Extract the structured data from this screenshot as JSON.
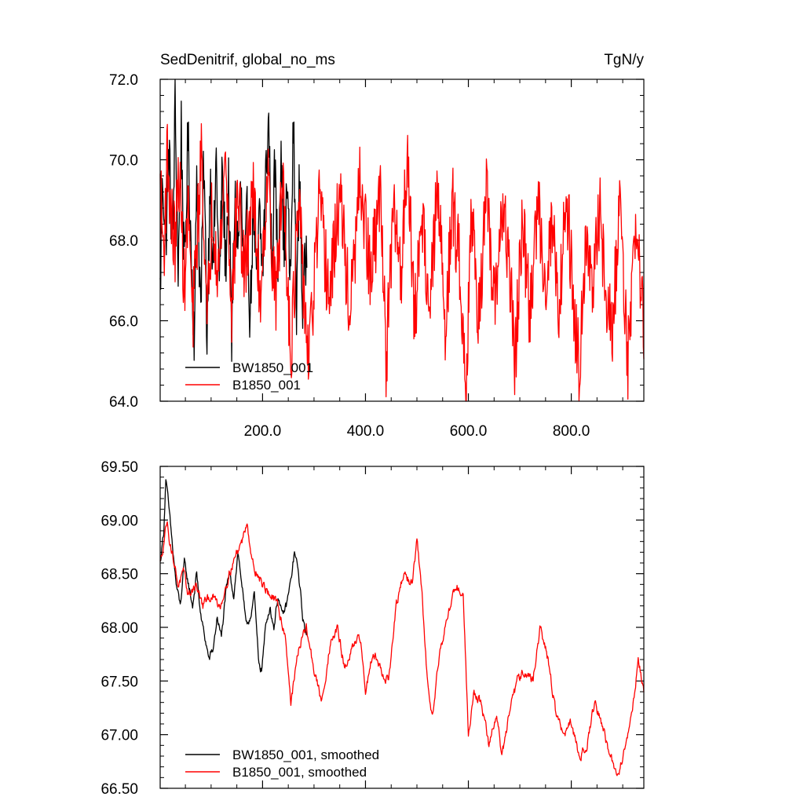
{
  "chart_data": [
    {
      "type": "line",
      "title": "SedDenitrif, global_no_ms",
      "units": "TgN/y",
      "xlim": [
        1,
        941
      ],
      "ylim": [
        64.0,
        72.0
      ],
      "yticks": [
        "64.0",
        "66.0",
        "68.0",
        "70.0",
        "72.0"
      ],
      "xticks": [
        "200.0",
        "400.0",
        "600.0",
        "800.0"
      ],
      "grid": false,
      "legend_position": "bottom-left",
      "series": [
        {
          "name": "BW1850_001",
          "color": "#000000",
          "x_start": 1,
          "x_end": 286,
          "anchors": [
            [
              1,
              66.7
            ],
            [
              6,
              69.6
            ],
            [
              12,
              68.0
            ],
            [
              18,
              70.3
            ],
            [
              25,
              67.6
            ],
            [
              30,
              71.4
            ],
            [
              36,
              67.2
            ],
            [
              42,
              70.8
            ],
            [
              48,
              67.0
            ],
            [
              55,
              70.6
            ],
            [
              62,
              67.4
            ],
            [
              68,
              65.5
            ],
            [
              72,
              69.9
            ],
            [
              80,
              66.2
            ],
            [
              86,
              70.0
            ],
            [
              92,
              65.6
            ],
            [
              98,
              69.7
            ],
            [
              104,
              67.2
            ],
            [
              110,
              70.1
            ],
            [
              116,
              66.8
            ],
            [
              122,
              69.8
            ],
            [
              128,
              67.4
            ],
            [
              134,
              69.3
            ],
            [
              140,
              65.4
            ],
            [
              146,
              69.1
            ],
            [
              152,
              67.8
            ],
            [
              158,
              69.3
            ],
            [
              164,
              66.7
            ],
            [
              170,
              68.6
            ],
            [
              176,
              66.0
            ],
            [
              182,
              69.1
            ],
            [
              188,
              66.7
            ],
            [
              194,
              68.6
            ],
            [
              200,
              67.2
            ],
            [
              206,
              69.5
            ],
            [
              212,
              71.0
            ],
            [
              218,
              67.3
            ],
            [
              224,
              69.9
            ],
            [
              230,
              67.2
            ],
            [
              236,
              70.6
            ],
            [
              242,
              67.6
            ],
            [
              248,
              69.3
            ],
            [
              254,
              66.8
            ],
            [
              260,
              70.9
            ],
            [
              266,
              66.5
            ],
            [
              272,
              69.6
            ],
            [
              278,
              66.2
            ],
            [
              286,
              68.0
            ]
          ],
          "noise": 0.85
        },
        {
          "name": "B1850_001",
          "color": "#ff0000",
          "x_start": 1,
          "x_end": 941,
          "anchors": [
            [
              1,
              69.2
            ],
            [
              8,
              67.7
            ],
            [
              15,
              70.2
            ],
            [
              22,
              68.5
            ],
            [
              30,
              67.9
            ],
            [
              38,
              69.7
            ],
            [
              48,
              66.8
            ],
            [
              56,
              68.9
            ],
            [
              64,
              65.9
            ],
            [
              72,
              68.0
            ],
            [
              82,
              70.3
            ],
            [
              92,
              65.7
            ],
            [
              102,
              68.9
            ],
            [
              115,
              67.2
            ],
            [
              128,
              70.2
            ],
            [
              140,
              66.3
            ],
            [
              152,
              69.3
            ],
            [
              165,
              67.0
            ],
            [
              180,
              69.4
            ],
            [
              195,
              66.6
            ],
            [
              210,
              69.7
            ],
            [
              225,
              66.4
            ],
            [
              240,
              69.6
            ],
            [
              255,
              65.2
            ],
            [
              270,
              68.8
            ],
            [
              290,
              64.9
            ],
            [
              310,
              68.9
            ],
            [
              330,
              66.5
            ],
            [
              350,
              69.2
            ],
            [
              370,
              66.1
            ],
            [
              390,
              69.5
            ],
            [
              410,
              67.0
            ],
            [
              430,
              69.3
            ],
            [
              440,
              65.0
            ],
            [
              455,
              68.7
            ],
            [
              470,
              67.2
            ],
            [
              482,
              70.5
            ],
            [
              495,
              65.8
            ],
            [
              510,
              68.8
            ],
            [
              525,
              66.2
            ],
            [
              540,
              69.3
            ],
            [
              555,
              66.0
            ],
            [
              570,
              68.8
            ],
            [
              585,
              67.2
            ],
            [
              595,
              64.1
            ],
            [
              605,
              68.8
            ],
            [
              620,
              66.1
            ],
            [
              635,
              69.1
            ],
            [
              650,
              66.2
            ],
            [
              665,
              68.8
            ],
            [
              680,
              67.4
            ],
            [
              690,
              64.9
            ],
            [
              705,
              68.4
            ],
            [
              720,
              66.1
            ],
            [
              735,
              69.0
            ],
            [
              750,
              66.9
            ],
            [
              765,
              68.7
            ],
            [
              775,
              66.0
            ],
            [
              790,
              69.3
            ],
            [
              805,
              66.4
            ],
            [
              815,
              64.8
            ],
            [
              828,
              68.2
            ],
            [
              842,
              66.5
            ],
            [
              855,
              68.9
            ],
            [
              870,
              66.2
            ],
            [
              880,
              65.7
            ],
            [
              895,
              69.2
            ],
            [
              910,
              64.9
            ],
            [
              925,
              68.6
            ],
            [
              941,
              65.8
            ]
          ],
          "noise": 1.0
        }
      ]
    },
    {
      "type": "line",
      "title": "",
      "xlim": [
        1,
        941
      ],
      "ylim": [
        66.5,
        69.5
      ],
      "yticks": [
        "66.50",
        "67.00",
        "67.50",
        "68.00",
        "68.50",
        "69.00",
        "69.50"
      ],
      "grid": false,
      "legend_position": "bottom-left",
      "series": [
        {
          "name": "BW1850_001, smoothed",
          "color": "#000000",
          "x_start": 1,
          "x_end": 286,
          "anchors": [
            [
              1,
              68.6
            ],
            [
              8,
              68.9
            ],
            [
              12,
              69.4
            ],
            [
              16,
              69.2
            ],
            [
              20,
              69.0
            ],
            [
              26,
              68.7
            ],
            [
              32,
              68.4
            ],
            [
              40,
              68.2
            ],
            [
              48,
              68.6
            ],
            [
              56,
              68.4
            ],
            [
              64,
              68.2
            ],
            [
              72,
              68.5
            ],
            [
              80,
              68.1
            ],
            [
              88,
              67.9
            ],
            [
              96,
              67.7
            ],
            [
              104,
              67.8
            ],
            [
              112,
              68.1
            ],
            [
              120,
              67.9
            ],
            [
              128,
              68.3
            ],
            [
              136,
              68.5
            ],
            [
              144,
              68.3
            ],
            [
              152,
              68.7
            ],
            [
              160,
              68.4
            ],
            [
              168,
              68.0
            ],
            [
              176,
              68.1
            ],
            [
              184,
              68.3
            ],
            [
              192,
              67.7
            ],
            [
              198,
              67.6
            ],
            [
              206,
              68.0
            ],
            [
              214,
              68.2
            ],
            [
              222,
              68.0
            ],
            [
              230,
              68.3
            ],
            [
              238,
              68.1
            ],
            [
              246,
              68.2
            ],
            [
              254,
              68.4
            ],
            [
              262,
              68.7
            ],
            [
              270,
              68.5
            ],
            [
              278,
              68.1
            ],
            [
              286,
              67.9
            ]
          ],
          "noise": 0.08
        },
        {
          "name": "B1850_001, smoothed",
          "color": "#ff0000",
          "x_start": 1,
          "x_end": 941,
          "anchors": [
            [
              1,
              68.6
            ],
            [
              8,
              68.8
            ],
            [
              14,
              69.0
            ],
            [
              20,
              68.8
            ],
            [
              28,
              68.6
            ],
            [
              36,
              68.4
            ],
            [
              46,
              68.5
            ],
            [
              56,
              68.3
            ],
            [
              70,
              68.4
            ],
            [
              84,
              68.2
            ],
            [
              100,
              68.3
            ],
            [
              118,
              68.2
            ],
            [
              135,
              68.5
            ],
            [
              150,
              68.7
            ],
            [
              160,
              68.8
            ],
            [
              170,
              69.0
            ],
            [
              180,
              68.6
            ],
            [
              190,
              68.5
            ],
            [
              200,
              68.4
            ],
            [
              215,
              68.3
            ],
            [
              230,
              68.2
            ],
            [
              245,
              67.9
            ],
            [
              255,
              67.3
            ],
            [
              270,
              67.8
            ],
            [
              285,
              68.0
            ],
            [
              300,
              67.6
            ],
            [
              315,
              67.3
            ],
            [
              330,
              67.8
            ],
            [
              345,
              68.0
            ],
            [
              360,
              67.6
            ],
            [
              375,
              67.8
            ],
            [
              390,
              67.9
            ],
            [
              400,
              67.4
            ],
            [
              415,
              67.8
            ],
            [
              430,
              67.6
            ],
            [
              445,
              67.5
            ],
            [
              460,
              68.2
            ],
            [
              475,
              68.5
            ],
            [
              490,
              68.4
            ],
            [
              500,
              68.8
            ],
            [
              510,
              68.3
            ],
            [
              520,
              67.5
            ],
            [
              530,
              67.2
            ],
            [
              545,
              67.8
            ],
            [
              560,
              68.1
            ],
            [
              575,
              68.4
            ],
            [
              590,
              68.3
            ],
            [
              600,
              67.0
            ],
            [
              610,
              67.4
            ],
            [
              625,
              67.3
            ],
            [
              640,
              66.9
            ],
            [
              655,
              67.2
            ],
            [
              665,
              66.8
            ],
            [
              680,
              67.2
            ],
            [
              695,
              67.5
            ],
            [
              710,
              67.6
            ],
            [
              725,
              67.5
            ],
            [
              740,
              68.0
            ],
            [
              755,
              67.7
            ],
            [
              770,
              67.2
            ],
            [
              785,
              67.0
            ],
            [
              800,
              67.1
            ],
            [
              815,
              66.8
            ],
            [
              830,
              66.9
            ],
            [
              845,
              67.3
            ],
            [
              860,
              67.1
            ],
            [
              875,
              66.8
            ],
            [
              890,
              66.6
            ],
            [
              905,
              66.9
            ],
            [
              918,
              67.2
            ],
            [
              930,
              67.7
            ],
            [
              941,
              67.4
            ]
          ],
          "noise": 0.09
        }
      ]
    }
  ]
}
